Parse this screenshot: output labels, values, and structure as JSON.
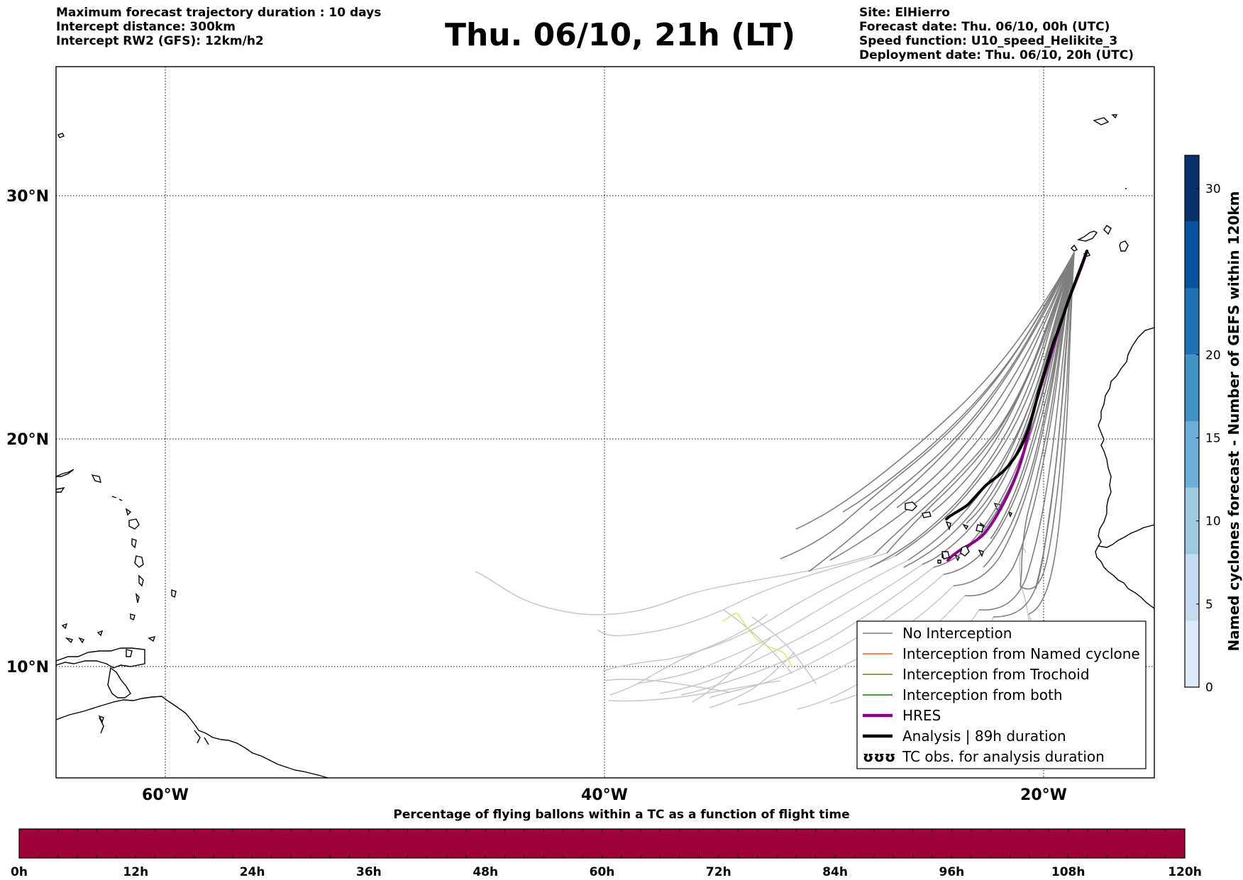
{
  "header": {
    "left_lines": [
      "Maximum forecast trajectory duration : 10 days",
      "Intercept distance: 300km",
      "Intercept RW2 (GFS):  12km/h2"
    ],
    "title": "Thu. 06/10, 21h (LT)",
    "right_lines": [
      "Site: ElHierro",
      "Forecast date: Thu. 06/10, 00h (UTC)",
      "Speed function: U10_speed_Helikite_3",
      "Deployment date: Thu. 06/10, 20h (UTC)"
    ]
  },
  "map": {
    "lat_labels": [
      "30°N",
      "20°N",
      "10°N"
    ],
    "lon_labels": [
      "60°W",
      "40°W",
      "20°W"
    ],
    "colors": {
      "no_interception": "#7f7f7f",
      "named_cyclone": "#ff5a1f",
      "trochoid": "#808000",
      "both": "#008000",
      "hres": "#8b008b",
      "analysis": "#000000",
      "coast": "#000000"
    }
  },
  "legend": {
    "items": [
      {
        "label": "No Interception",
        "color": "#7f7f7f",
        "style": "thin"
      },
      {
        "label": "Interception from Named cyclone",
        "color": "#ff5a1f",
        "style": "thin"
      },
      {
        "label": "Interception from Trochoid",
        "color": "#808000",
        "style": "thin"
      },
      {
        "label": "Interception from both",
        "color": "#008000",
        "style": "thin"
      },
      {
        "label": "HRES",
        "color": "#8b008b",
        "style": "thick"
      },
      {
        "label": "Analysis | 89h duration",
        "color": "#000000",
        "style": "thick"
      },
      {
        "label": "TC obs. for analysis duration",
        "color": "#000000",
        "style": "symbol",
        "symbol": "ʊʊʊ"
      }
    ]
  },
  "colorbar": {
    "label": "Named cyclones forecast - Number of GEFS within 120km",
    "ticks": [
      "0",
      "5",
      "10",
      "15",
      "20",
      "30"
    ],
    "colors": [
      "#dce9f6",
      "#c6dbef",
      "#9ecae1",
      "#6baed6",
      "#4292c6",
      "#2171b5",
      "#08519c",
      "#08306b"
    ]
  },
  "timebar": {
    "title": "Percentage of flying ballons within a TC as a function of flight time",
    "ticks": [
      "0h",
      "12h",
      "24h",
      "36h",
      "48h",
      "60h",
      "72h",
      "84h",
      "96h",
      "108h",
      "120h"
    ],
    "fill_color": "#9e003a"
  }
}
